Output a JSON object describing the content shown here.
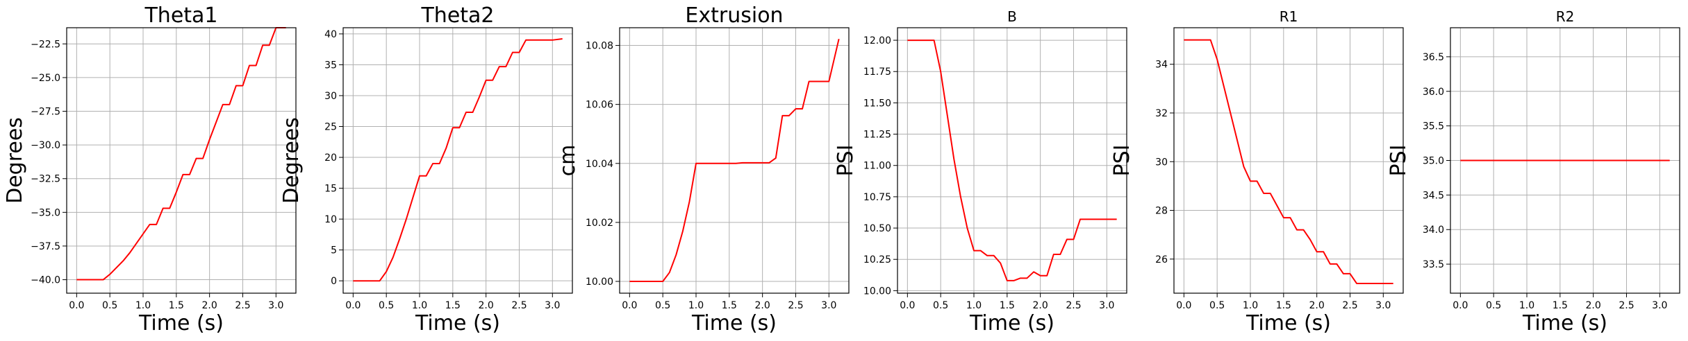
{
  "chart_data": [
    {
      "type": "line",
      "title": "Theta1",
      "xlabel": "Time (s)",
      "ylabel": "Degrees",
      "xlim": [
        -0.15,
        3.3
      ],
      "ylim": [
        -41.0,
        -21.3
      ],
      "xticks": [
        0.0,
        0.5,
        1.0,
        1.5,
        2.0,
        2.5,
        3.0
      ],
      "xtick_labels": [
        "0.0",
        "0.5",
        "1.0",
        "1.5",
        "2.0",
        "2.5",
        "3.0"
      ],
      "yticks": [
        -40.0,
        -37.5,
        -35.0,
        -32.5,
        -30.0,
        -27.5,
        -25.0,
        -22.5
      ],
      "ytick_labels": [
        "−40.0",
        "−37.5",
        "−35.0",
        "−32.5",
        "−30.0",
        "−27.5",
        "−25.0",
        "−22.5"
      ],
      "grid": true,
      "line_color": "#ff0000",
      "x": [
        0.0,
        0.35,
        0.4,
        0.5,
        0.6,
        0.7,
        0.8,
        0.9,
        1.0,
        1.1,
        1.2,
        1.3,
        1.4,
        1.5,
        1.6,
        1.7,
        1.8,
        1.9,
        2.0,
        2.1,
        2.2,
        2.3,
        2.4,
        2.5,
        2.6,
        2.7,
        2.8,
        2.9,
        3.0,
        3.15
      ],
      "y": [
        -40.0,
        -40.0,
        -40.0,
        -39.6,
        -39.1,
        -38.6,
        -38.0,
        -37.3,
        -36.6,
        -35.9,
        -35.9,
        -34.7,
        -34.7,
        -33.5,
        -32.2,
        -32.2,
        -31.0,
        -31.0,
        -29.6,
        -28.3,
        -27.0,
        -27.0,
        -25.6,
        -25.6,
        -24.1,
        -24.1,
        -22.6,
        -22.6,
        -21.3,
        -21.3
      ]
    },
    {
      "type": "line",
      "title": "Theta2",
      "xlabel": "Time (s)",
      "ylabel": "Degrees",
      "xlim": [
        -0.15,
        3.3
      ],
      "ylim": [
        -2.0,
        41.0
      ],
      "xticks": [
        0.0,
        0.5,
        1.0,
        1.5,
        2.0,
        2.5,
        3.0
      ],
      "xtick_labels": [
        "0.0",
        "0.5",
        "1.0",
        "1.5",
        "2.0",
        "2.5",
        "3.0"
      ],
      "yticks": [
        0,
        5,
        10,
        15,
        20,
        25,
        30,
        35,
        40
      ],
      "ytick_labels": [
        "0",
        "5",
        "10",
        "15",
        "20",
        "25",
        "30",
        "35",
        "40"
      ],
      "grid": true,
      "line_color": "#ff0000",
      "x": [
        0.0,
        0.4,
        0.5,
        0.6,
        0.7,
        0.8,
        0.9,
        1.0,
        1.1,
        1.2,
        1.3,
        1.4,
        1.5,
        1.6,
        1.7,
        1.8,
        1.9,
        2.0,
        2.1,
        2.2,
        2.3,
        2.4,
        2.5,
        2.6,
        2.7,
        2.8,
        2.9,
        3.0,
        3.15
      ],
      "y": [
        0.0,
        0.0,
        1.5,
        3.8,
        6.8,
        10.0,
        13.5,
        17.0,
        17.0,
        19.0,
        19.0,
        21.5,
        24.8,
        24.8,
        27.3,
        27.3,
        29.8,
        32.5,
        32.5,
        34.7,
        34.7,
        37.0,
        37.0,
        39.0,
        39.0,
        39.0,
        39.0,
        39.0,
        39.2
      ]
    },
    {
      "type": "line",
      "title": "Extrusion",
      "xlabel": "Time (s)",
      "ylabel": "cm",
      "xlim": [
        -0.15,
        3.3
      ],
      "ylim": [
        9.996,
        10.086
      ],
      "xticks": [
        0.0,
        0.5,
        1.0,
        1.5,
        2.0,
        2.5,
        3.0
      ],
      "xtick_labels": [
        "0.0",
        "0.5",
        "1.0",
        "1.5",
        "2.0",
        "2.5",
        "3.0"
      ],
      "yticks": [
        10.0,
        10.02,
        10.04,
        10.06,
        10.08
      ],
      "ytick_labels": [
        "10.00",
        "10.02",
        "10.04",
        "10.06",
        "10.08"
      ],
      "grid": true,
      "line_color": "#ff0000",
      "x": [
        0.0,
        0.5,
        0.6,
        0.7,
        0.8,
        0.9,
        1.0,
        1.1,
        1.2,
        1.3,
        1.4,
        1.5,
        1.6,
        1.7,
        1.8,
        1.9,
        2.0,
        2.1,
        2.2,
        2.3,
        2.4,
        2.5,
        2.6,
        2.7,
        2.8,
        2.9,
        3.0,
        3.15
      ],
      "y": [
        10.0,
        10.0,
        10.003,
        10.009,
        10.017,
        10.027,
        10.04,
        10.04,
        10.04,
        10.04,
        10.04,
        10.04,
        10.04,
        10.0402,
        10.0402,
        10.0402,
        10.0402,
        10.0402,
        10.0418,
        10.0562,
        10.0562,
        10.0585,
        10.0585,
        10.0678,
        10.0678,
        10.0678,
        10.0678,
        10.0822
      ]
    },
    {
      "type": "line",
      "title": "B",
      "xlabel": "Time (s)",
      "ylabel": "PSI",
      "xlim": [
        -0.15,
        3.3
      ],
      "ylim": [
        9.98,
        12.1
      ],
      "xticks": [
        0.0,
        0.5,
        1.0,
        1.5,
        2.0,
        2.5,
        3.0
      ],
      "xtick_labels": [
        "0.0",
        "0.5",
        "1.0",
        "1.5",
        "2.0",
        "2.5",
        "3.0"
      ],
      "yticks": [
        10.0,
        10.25,
        10.5,
        10.75,
        11.0,
        11.25,
        11.5,
        11.75,
        12.0
      ],
      "ytick_labels": [
        "10.00",
        "10.25",
        "10.50",
        "10.75",
        "11.00",
        "11.25",
        "11.50",
        "11.75",
        "12.00"
      ],
      "grid": true,
      "line_color": "#ff0000",
      "x": [
        0.0,
        0.4,
        0.5,
        0.6,
        0.7,
        0.8,
        0.9,
        1.0,
        1.1,
        1.2,
        1.3,
        1.4,
        1.5,
        1.6,
        1.7,
        1.8,
        1.9,
        2.0,
        2.1,
        2.2,
        2.3,
        2.4,
        2.5,
        2.6,
        2.7,
        2.8,
        2.9,
        3.0,
        3.15
      ],
      "y": [
        12.0,
        12.0,
        11.75,
        11.4,
        11.05,
        10.75,
        10.5,
        10.32,
        10.32,
        10.28,
        10.28,
        10.22,
        10.08,
        10.08,
        10.1,
        10.1,
        10.15,
        10.12,
        10.12,
        10.29,
        10.29,
        10.41,
        10.41,
        10.57,
        10.57,
        10.57,
        10.57,
        10.57,
        10.57
      ]
    },
    {
      "type": "line",
      "title": "R1",
      "xlabel": "Time (s)",
      "ylabel": "PSI",
      "xlim": [
        -0.15,
        3.3
      ],
      "ylim": [
        24.6,
        35.5
      ],
      "xticks": [
        0.0,
        0.5,
        1.0,
        1.5,
        2.0,
        2.5,
        3.0
      ],
      "xtick_labels": [
        "0.0",
        "0.5",
        "1.0",
        "1.5",
        "2.0",
        "2.5",
        "3.0"
      ],
      "yticks": [
        26,
        28,
        30,
        32,
        34
      ],
      "ytick_labels": [
        "26",
        "28",
        "30",
        "32",
        "34"
      ],
      "grid": true,
      "line_color": "#ff0000",
      "x": [
        0.0,
        0.4,
        0.5,
        0.6,
        0.7,
        0.8,
        0.9,
        1.0,
        1.1,
        1.2,
        1.3,
        1.4,
        1.5,
        1.6,
        1.7,
        1.8,
        1.9,
        2.0,
        2.1,
        2.2,
        2.3,
        2.4,
        2.5,
        2.6,
        2.7,
        2.8,
        2.9,
        3.0,
        3.15
      ],
      "y": [
        35.0,
        35.0,
        34.2,
        33.1,
        32.0,
        30.9,
        29.8,
        29.2,
        29.2,
        28.7,
        28.7,
        28.2,
        27.7,
        27.7,
        27.2,
        27.2,
        26.8,
        26.3,
        26.3,
        25.8,
        25.8,
        25.4,
        25.4,
        25.0,
        25.0,
        25.0,
        25.0,
        25.0,
        25.0
      ]
    },
    {
      "type": "line",
      "title": "R2",
      "xlabel": "Time (s)",
      "ylabel": "PSI",
      "xlim": [
        -0.15,
        3.3
      ],
      "ylim": [
        33.08,
        36.92
      ],
      "xticks": [
        0.0,
        0.5,
        1.0,
        1.5,
        2.0,
        2.5,
        3.0
      ],
      "xtick_labels": [
        "0.0",
        "0.5",
        "1.0",
        "1.5",
        "2.0",
        "2.5",
        "3.0"
      ],
      "yticks": [
        33.5,
        34.0,
        34.5,
        35.0,
        35.5,
        36.0,
        36.5
      ],
      "ytick_labels": [
        "33.5",
        "34.0",
        "34.5",
        "35.0",
        "35.5",
        "36.0",
        "36.5"
      ],
      "grid": true,
      "line_color": "#ff0000",
      "x": [
        0.0,
        3.15
      ],
      "y": [
        35.0,
        35.0
      ]
    }
  ]
}
